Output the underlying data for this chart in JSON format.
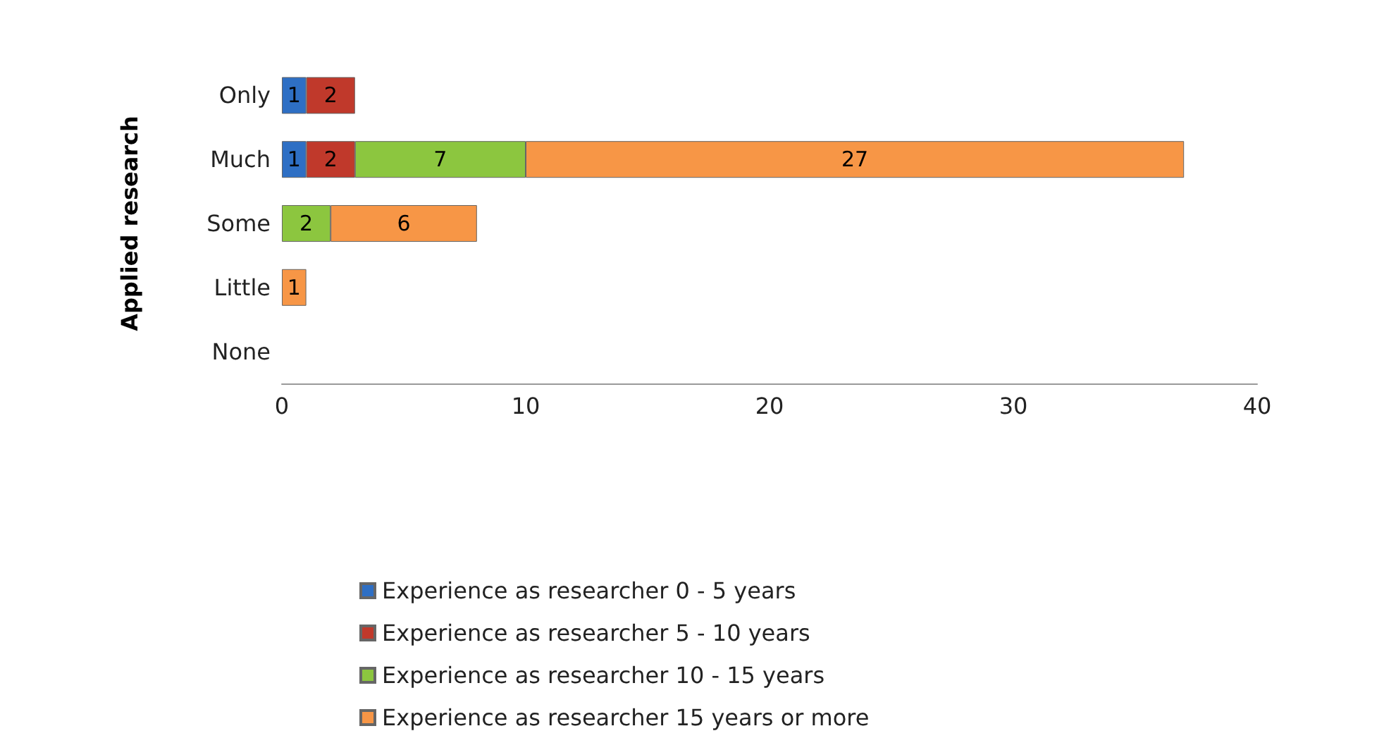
{
  "chart_data": {
    "type": "bar",
    "orientation": "horizontal",
    "stacked": true,
    "ylabel": "Applied research",
    "categories": [
      "Only",
      "Much",
      "Some",
      "Little",
      "None"
    ],
    "series": [
      {
        "name": "Experience as researcher 0 - 5 years",
        "color": "#2e6fc4",
        "values": [
          1,
          1,
          null,
          null,
          null
        ]
      },
      {
        "name": "Experience as researcher 5 - 10 years",
        "color": "#c0392b",
        "values": [
          2,
          2,
          null,
          null,
          null
        ]
      },
      {
        "name": "Experience as researcher 10 - 15 years",
        "color": "#8cc63f",
        "values": [
          null,
          7,
          2,
          null,
          null
        ]
      },
      {
        "name": "Experience as researcher 15 years or more",
        "color": "#f79646",
        "values": [
          null,
          27,
          6,
          1,
          null
        ]
      }
    ],
    "xlim": [
      0,
      40
    ],
    "xticks": [
      0,
      10,
      20,
      30,
      40
    ],
    "grid": false,
    "legend": "bottom",
    "data_labels": true
  }
}
